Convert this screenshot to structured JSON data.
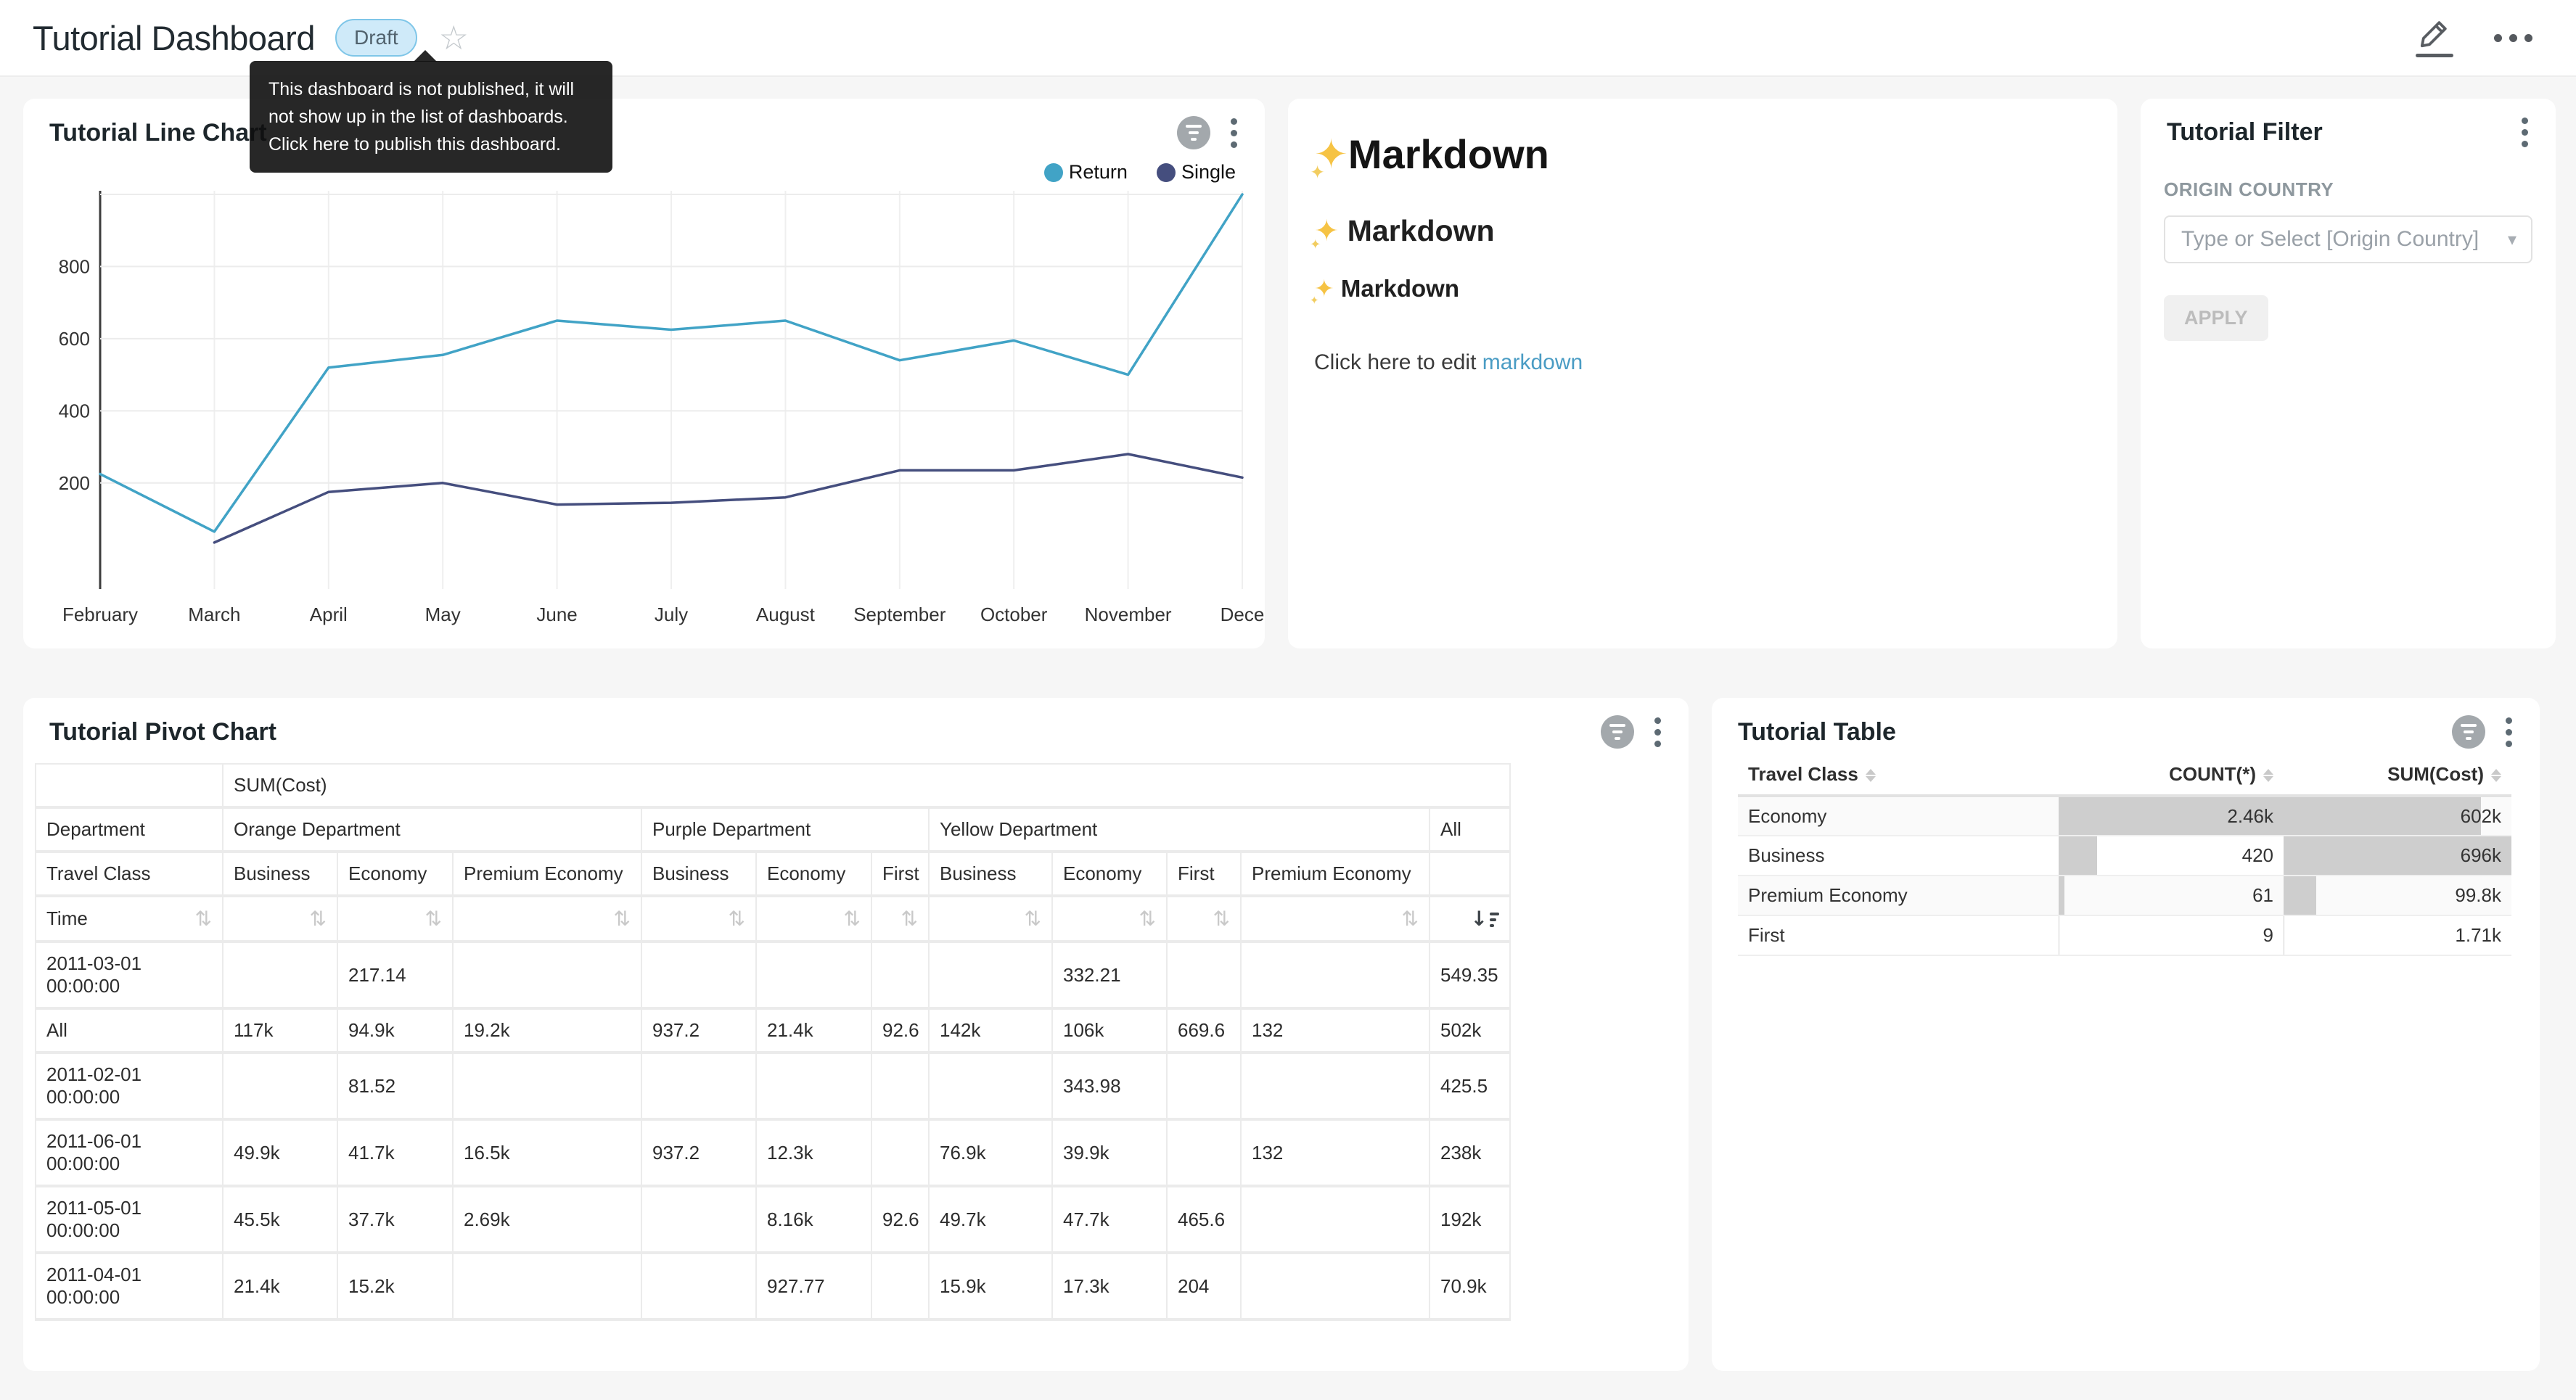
{
  "header": {
    "title": "Tutorial Dashboard",
    "status_badge": "Draft",
    "tooltip_lines": [
      "This dashboard is not published, it will",
      "not show up in the list of dashboards.",
      "Click here to publish this dashboard."
    ]
  },
  "colors": {
    "return_series": "#41A3C6",
    "single_series": "#454E7E",
    "page_bg": "#f6f6f6",
    "table_bar_fill": "#cecece",
    "draft_badge_bg": "#cfeaf9"
  },
  "line_chart_card": {
    "title": "Tutorial Line Chart",
    "legend": [
      {
        "label": "Return",
        "color": "#41A3C6"
      },
      {
        "label": "Single",
        "color": "#454E7E"
      }
    ],
    "chart_data": {
      "type": "line",
      "categories": [
        "February",
        "March",
        "April",
        "May",
        "June",
        "July",
        "August",
        "September",
        "October",
        "November",
        "Dece"
      ],
      "series": [
        {
          "name": "Return",
          "color": "#41A3C6",
          "values": [
            225,
            65,
            520,
            555,
            650,
            625,
            650,
            540,
            595,
            500,
            1000
          ]
        },
        {
          "name": "Single",
          "color": "#454E7E",
          "values": [
            null,
            35,
            175,
            200,
            140,
            145,
            160,
            235,
            235,
            280,
            215
          ]
        }
      ],
      "y_ticks": [
        200,
        400,
        600,
        800
      ],
      "ylim": [
        -94,
        1010
      ],
      "grid": true,
      "legend_position": "top-right"
    }
  },
  "markdown_card": {
    "sparkle_icon": "sparkles-emoji",
    "heading1": "Markdown",
    "heading2": "Markdown",
    "heading3": "Markdown",
    "paragraph_prefix": "Click here to edit ",
    "link_text": "markdown"
  },
  "filter_card": {
    "title": "Tutorial Filter",
    "field_label": "ORIGIN COUNTRY",
    "select_placeholder": "Type or Select [Origin Country]",
    "apply_label": "APPLY"
  },
  "pivot_card": {
    "title": "Tutorial Pivot Chart",
    "metric_header": "SUM(Cost)",
    "dept_row_label": "Department",
    "class_row_label": "Travel Class",
    "time_row_label": "Time",
    "all_label": "All",
    "groups": [
      {
        "label": "Orange Department",
        "cols": [
          "Business",
          "Economy",
          "Premium Economy"
        ]
      },
      {
        "label": "Purple Department",
        "cols": [
          "Business",
          "Economy",
          "First"
        ]
      },
      {
        "label": "Yellow Department",
        "cols": [
          "Business",
          "Economy",
          "First",
          "Premium Economy"
        ]
      }
    ],
    "rows": [
      {
        "label": [
          "2011-03-01",
          "00:00:00"
        ],
        "values": [
          "",
          "217.14",
          "",
          "",
          "",
          "",
          "",
          "332.21",
          "",
          "",
          "549.35"
        ]
      },
      {
        "label": [
          "All"
        ],
        "values": [
          "117k",
          "94.9k",
          "19.2k",
          "937.2",
          "21.4k",
          "92.6",
          "142k",
          "106k",
          "669.6",
          "132",
          "502k"
        ]
      },
      {
        "label": [
          "2011-02-01",
          "00:00:00"
        ],
        "values": [
          "",
          "81.52",
          "",
          "",
          "",
          "",
          "",
          "343.98",
          "",
          "",
          "425.5"
        ]
      },
      {
        "label": [
          "2011-06-01",
          "00:00:00"
        ],
        "values": [
          "49.9k",
          "41.7k",
          "16.5k",
          "937.2",
          "12.3k",
          "",
          "76.9k",
          "39.9k",
          "",
          "132",
          "238k"
        ]
      },
      {
        "label": [
          "2011-05-01",
          "00:00:00"
        ],
        "values": [
          "45.5k",
          "37.7k",
          "2.69k",
          "",
          "8.16k",
          "92.6",
          "49.7k",
          "47.7k",
          "465.6",
          "",
          "192k"
        ]
      },
      {
        "label": [
          "2011-04-01",
          "00:00:00"
        ],
        "values": [
          "21.4k",
          "15.2k",
          "",
          "",
          "927.77",
          "",
          "15.9k",
          "17.3k",
          "204",
          "",
          "70.9k"
        ]
      }
    ]
  },
  "table_card": {
    "title": "Tutorial Table",
    "columns": [
      "Travel Class",
      "COUNT(*)",
      "SUM(Cost)"
    ],
    "chart_data": {
      "type": "table",
      "rows": [
        {
          "travel_class": "Economy",
          "count": "2.46k",
          "sum": "602k",
          "count_bar": 1,
          "sum_bar": 0.865
        },
        {
          "travel_class": "Business",
          "count": "420",
          "sum": "696k",
          "count_bar": 0.171,
          "sum_bar": 1
        },
        {
          "travel_class": "Premium Economy",
          "count": "61",
          "sum": "99.8k",
          "count_bar": 0.025,
          "sum_bar": 0.143
        },
        {
          "travel_class": "First",
          "count": "9",
          "sum": "1.71k",
          "count_bar": 0.004,
          "sum_bar": 0.003
        }
      ]
    }
  }
}
